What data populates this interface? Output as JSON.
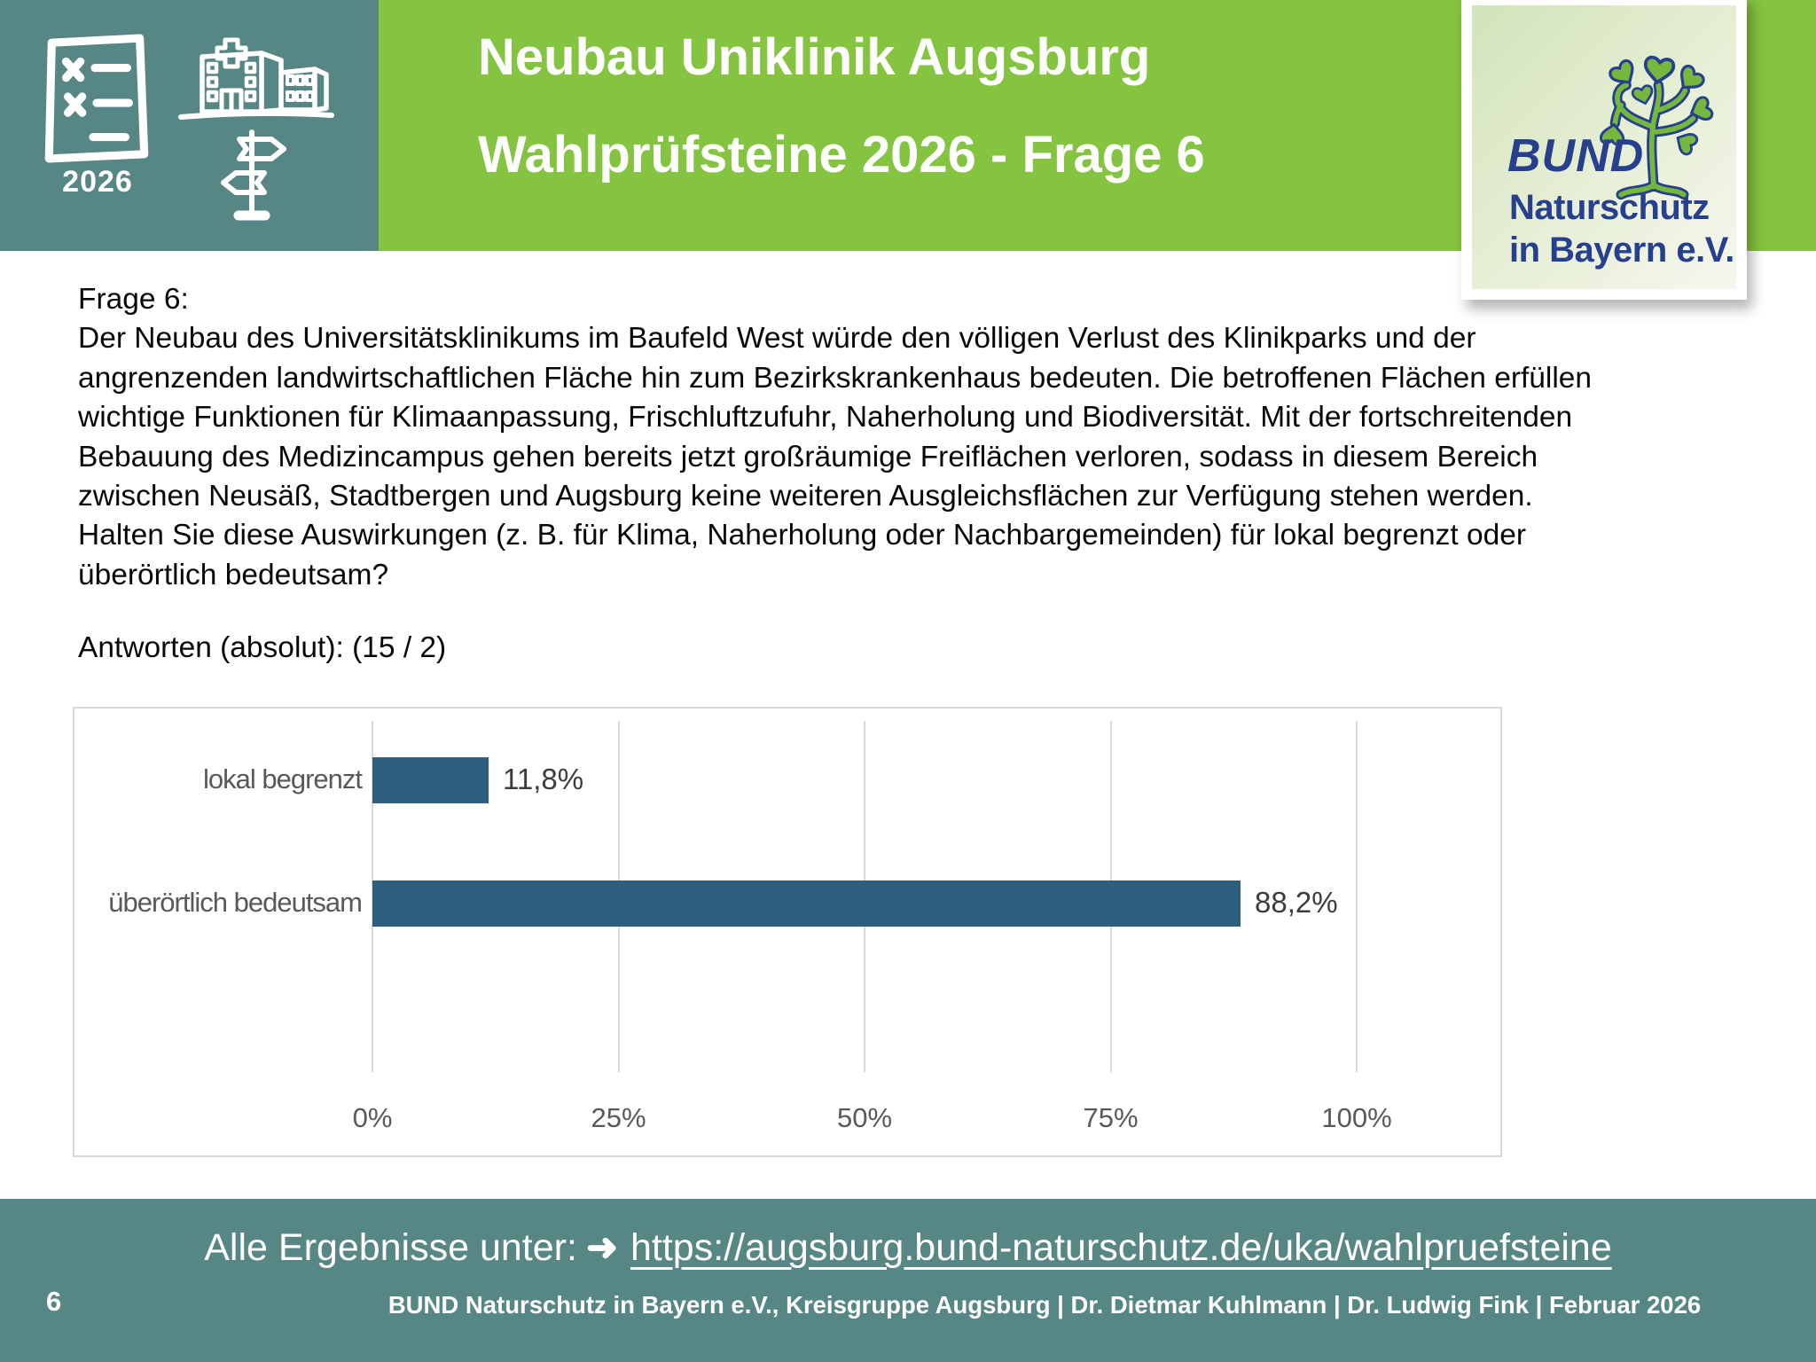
{
  "header": {
    "title_line1": "Neubau Uniklinik Augsburg",
    "title_line2": "Wahlprüfsteine 2026 - Frage 6",
    "year_badge": "2026",
    "icons": [
      "ballot-checklist-icon",
      "hospital-icon",
      "signpost-icon"
    ]
  },
  "logo": {
    "line1": "BUND",
    "line2": "Naturschutz",
    "line3": "in Bayern e.V.",
    "icon": "tree-icon",
    "text_color": "#26408e",
    "leaf_color": "#76b83d"
  },
  "question": {
    "label": "Frage 6:",
    "text": "Der Neubau des Universitätsklinikums im Baufeld West würde den völligen Verlust des Klinikparks und der\nangrenzenden landwirtschaftlichen Fläche hin zum Bezirkskrankenhaus bedeuten. Die betroffenen Flächen erfüllen\nwichtige Funktionen für Klimaanpassung, Frischluftzufuhr, Naherholung und Biodiversität. Mit der fortschreitenden\nBebauung des Medizincampus gehen bereits jetzt großräumige Freiflächen verloren, sodass in diesem Bereich\nzwischen Neusäß, Stadtbergen und Augsburg keine weiteren Ausgleichsflächen zur Verfügung stehen werden.\nHalten Sie diese Auswirkungen (z. B. für Klima, Naherholung oder Nachbargemeinden) für lokal begrenzt oder\nüberörtlich bedeutsam?"
  },
  "answers_label": "Antworten (absolut): (15 / 2)",
  "chart_data": {
    "type": "bar",
    "orientation": "horizontal",
    "categories": [
      "lokal begrenzt",
      "überörtlich bedeutsam"
    ],
    "values": [
      11.8,
      88.2
    ],
    "value_labels": [
      "11,8%",
      "88,2%"
    ],
    "x_ticks": [
      "0%",
      "25%",
      "50%",
      "75%",
      "100%"
    ],
    "x_tick_values": [
      0,
      25,
      50,
      75,
      100
    ],
    "xlim": [
      0,
      100
    ],
    "bar_color": "#2E5F7E",
    "grid": true,
    "title": "",
    "xlabel": "",
    "ylabel": ""
  },
  "footer": {
    "results_prefix": "Alle Ergebnisse unter:",
    "arrow": "➜",
    "results_url": "https://augsburg.bund-naturschutz.de/uka/wahlpruefsteine",
    "page_number": "6",
    "credit": "BUND Naturschutz in Bayern e.V., Kreisgruppe Augsburg | Dr. Dietmar Kuhlmann | Dr. Ludwig Fink | Februar 2026"
  },
  "colors": {
    "header_teal": "#578784",
    "header_green": "#85c441",
    "bar_blue": "#2E5F7E",
    "chart_text_gray": "#595959"
  }
}
